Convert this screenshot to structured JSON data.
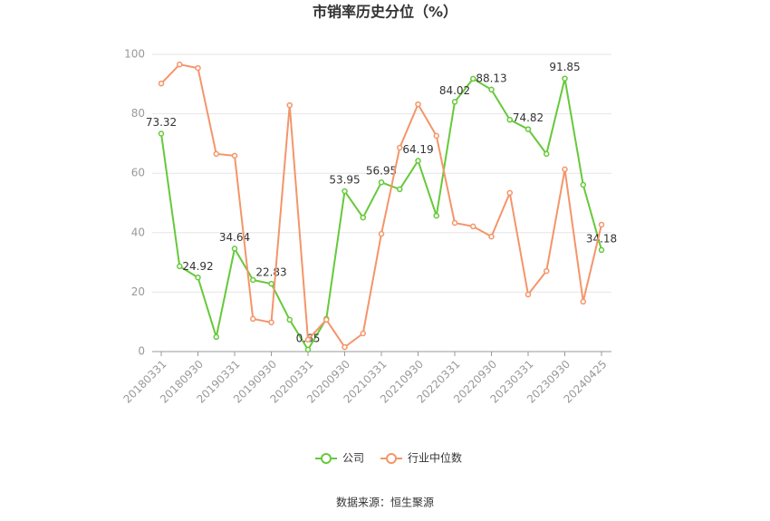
{
  "chart_data": {
    "type": "line",
    "title": "市销率历史分位（%）",
    "source": "数据来源：恒生聚源",
    "categories": [
      "20180331",
      null,
      "20180930",
      null,
      "20190331",
      null,
      "20190930",
      null,
      "20200331",
      null,
      "20200930",
      null,
      "20210331",
      null,
      "20210930",
      null,
      "20220331",
      null,
      "20220930",
      null,
      "20230331",
      null,
      "20230930",
      null,
      "20240425"
    ],
    "series": [
      {
        "name": "公司",
        "color": "#66c93a",
        "values": [
          73.32,
          28.7,
          24.92,
          4.9,
          34.64,
          24.1,
          22.83,
          10.7,
          0.65,
          11.0,
          53.95,
          45.1,
          56.95,
          54.6,
          64.19,
          45.7,
          84.02,
          91.8,
          88.13,
          78.0,
          74.82,
          66.5,
          91.85,
          56.1,
          34.18
        ],
        "value_labels": [
          "73.32",
          null,
          "24.92",
          null,
          "34.64",
          null,
          "22.83",
          null,
          "0.65",
          null,
          "53.95",
          null,
          "56.95",
          null,
          "64.19",
          null,
          "84.02",
          null,
          "88.13",
          null,
          "74.82",
          null,
          "91.85",
          null,
          "34.18"
        ]
      },
      {
        "name": "行业中位数",
        "color": "#f4956a",
        "values": [
          90.2,
          96.6,
          95.4,
          66.5,
          65.9,
          11.0,
          9.8,
          82.9,
          4.0,
          10.7,
          1.5,
          6.1,
          39.6,
          68.6,
          83.2,
          72.6,
          43.3,
          42.1,
          38.7,
          53.4,
          19.2,
          27.1,
          61.3,
          16.8,
          42.7
        ]
      }
    ],
    "ylim": [
      0,
      100
    ],
    "yticks": [
      0,
      20,
      40,
      60,
      80,
      100
    ],
    "grid": true
  }
}
